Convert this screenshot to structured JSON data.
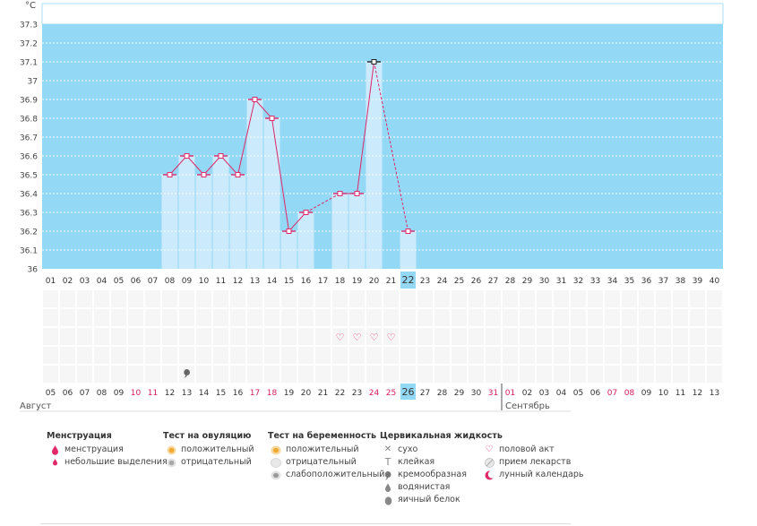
{
  "chart_data": {
    "type": "bar",
    "unit_label": "°C",
    "ylim": [
      36,
      37.3
    ],
    "y_ticks": [
      "37.3",
      "37.2",
      "37.1",
      "37",
      "36.9",
      "36.8",
      "36.7",
      "36.6",
      "36.5",
      "36.4",
      "36.3",
      "36.2",
      "36.1",
      "36"
    ],
    "cycle_days": [
      "01",
      "02",
      "03",
      "04",
      "05",
      "06",
      "07",
      "08",
      "09",
      "10",
      "11",
      "12",
      "13",
      "14",
      "15",
      "16",
      "17",
      "18",
      "19",
      "20",
      "21",
      "22",
      "23",
      "24",
      "25",
      "26",
      "27",
      "28",
      "29",
      "30",
      "31",
      "32",
      "33",
      "34",
      "35",
      "36",
      "37",
      "38",
      "39",
      "40"
    ],
    "current_day": "22",
    "temperatures": [
      {
        "day": 8,
        "value": 36.5
      },
      {
        "day": 9,
        "value": 36.6
      },
      {
        "day": 10,
        "value": 36.5
      },
      {
        "day": 11,
        "value": 36.6
      },
      {
        "day": 12,
        "value": 36.5
      },
      {
        "day": 13,
        "value": 36.9
      },
      {
        "day": 14,
        "value": 36.8
      },
      {
        "day": 15,
        "value": 36.2
      },
      {
        "day": 16,
        "value": 36.3
      },
      {
        "day": 18,
        "value": 36.4
      },
      {
        "day": 19,
        "value": 36.4
      },
      {
        "day": 20,
        "value": 37.1
      },
      {
        "day": 22,
        "value": 36.2
      }
    ],
    "dashed_segments": [
      [
        16,
        18
      ],
      [
        20,
        22
      ]
    ],
    "grid": true,
    "calendar_dates": [
      {
        "label": "05",
        "weekend": false
      },
      {
        "label": "06",
        "weekend": false
      },
      {
        "label": "07",
        "weekend": false
      },
      {
        "label": "08",
        "weekend": false
      },
      {
        "label": "09",
        "weekend": false
      },
      {
        "label": "10",
        "weekend": true
      },
      {
        "label": "11",
        "weekend": true
      },
      {
        "label": "12",
        "weekend": false
      },
      {
        "label": "13",
        "weekend": false
      },
      {
        "label": "14",
        "weekend": false
      },
      {
        "label": "15",
        "weekend": false
      },
      {
        "label": "16",
        "weekend": false
      },
      {
        "label": "17",
        "weekend": true
      },
      {
        "label": "18",
        "weekend": true
      },
      {
        "label": "19",
        "weekend": false
      },
      {
        "label": "20",
        "weekend": false
      },
      {
        "label": "21",
        "weekend": false
      },
      {
        "label": "22",
        "weekend": false
      },
      {
        "label": "23",
        "weekend": false
      },
      {
        "label": "24",
        "weekend": true
      },
      {
        "label": "25",
        "weekend": true
      },
      {
        "label": "26",
        "weekend": false
      },
      {
        "label": "27",
        "weekend": false
      },
      {
        "label": "28",
        "weekend": false
      },
      {
        "label": "29",
        "weekend": false
      },
      {
        "label": "30",
        "weekend": false
      },
      {
        "label": "31",
        "weekend": true
      },
      {
        "label": "01",
        "weekend": true
      },
      {
        "label": "02",
        "weekend": false
      },
      {
        "label": "03",
        "weekend": false
      },
      {
        "label": "04",
        "weekend": false
      },
      {
        "label": "05",
        "weekend": false
      },
      {
        "label": "06",
        "weekend": false
      },
      {
        "label": "07",
        "weekend": true
      },
      {
        "label": "08",
        "weekend": true
      },
      {
        "label": "09",
        "weekend": false
      },
      {
        "label": "10",
        "weekend": false
      },
      {
        "label": "11",
        "weekend": false
      },
      {
        "label": "12",
        "weekend": false
      },
      {
        "label": "13",
        "weekend": false
      }
    ],
    "current_date": "26",
    "months": [
      {
        "label": "Август",
        "start_day": 1
      },
      {
        "label": "Сентябрь",
        "start_day": 28
      }
    ],
    "sex_marker_days": [
      18,
      19,
      20,
      21
    ],
    "cervical_marker_days": [
      9
    ],
    "colors": {
      "sky": "#93d8f5",
      "bar": "#cbeafc",
      "line": "#e0286a",
      "weekend": "#d31c5b",
      "grid": "#ffffff"
    }
  },
  "legend": {
    "menstruation": {
      "title": "Менструация",
      "items": [
        {
          "icon": "drop-icon",
          "label": "менструация"
        },
        {
          "icon": "small-drop-icon",
          "label": "небольшие выделения"
        }
      ]
    },
    "ovulation": {
      "title": "Тест на овуляцию",
      "items": [
        {
          "icon": "positive-test-icon",
          "label": "положительный"
        },
        {
          "icon": "negative-test-icon",
          "label": "отрицательный"
        }
      ]
    },
    "pregnancy": {
      "title": "Тест на беременность",
      "items": [
        {
          "icon": "positive-test-icon",
          "label": "положительный"
        },
        {
          "icon": "negative-test-icon",
          "label": "отрицательный"
        },
        {
          "icon": "weak-positive-test-icon",
          "label": "слабоположительный"
        }
      ]
    },
    "cervical": {
      "title": "Цервикальная жидкость",
      "items": [
        {
          "icon": "dry-icon",
          "label": "сухо"
        },
        {
          "icon": "sticky-icon",
          "label": "клейкая"
        },
        {
          "icon": "creamy-icon",
          "label": "кремообразная"
        },
        {
          "icon": "watery-icon",
          "label": "водянистая"
        },
        {
          "icon": "egg-white-icon",
          "label": "яичный белок"
        }
      ]
    },
    "other": {
      "items": [
        {
          "icon": "heart-icon",
          "label": "половой акт"
        },
        {
          "icon": "pill-icon",
          "label": "прием лекарств"
        },
        {
          "icon": "moon-icon",
          "label": "лунный календарь"
        }
      ]
    }
  }
}
